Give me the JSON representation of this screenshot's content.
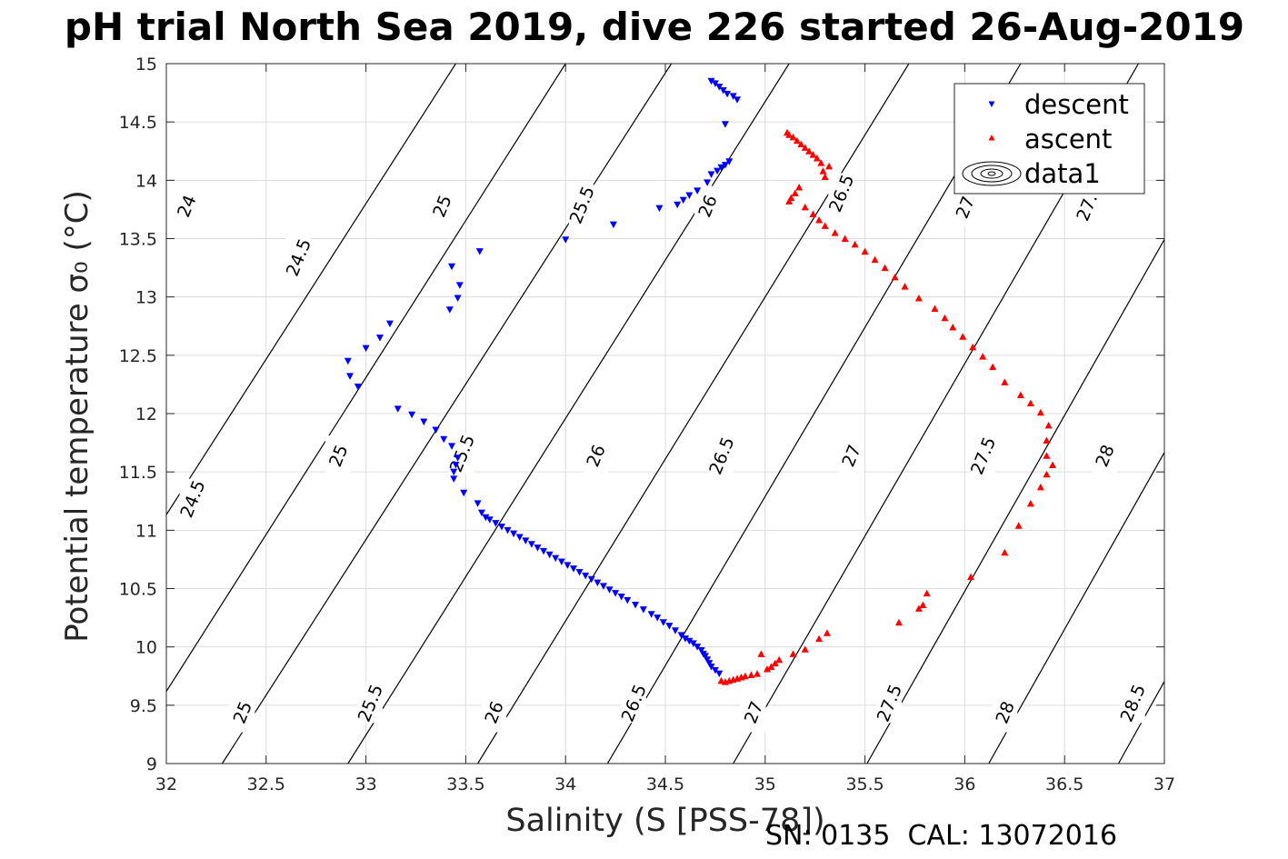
{
  "chart_data": {
    "type": "scatter",
    "title": "pH trial North Sea 2019, dive 226 started 26-Aug-2019",
    "xlabel": "Salinity (S [PSS-78])",
    "ylabel": "Potential temperature σ₀ (°C)",
    "footnote": "SN: 0135  CAL: 13072016",
    "xlim": [
      32,
      37
    ],
    "ylim": [
      9,
      15
    ],
    "x_ticks": [
      "32",
      "32.5",
      "33",
      "33.5",
      "34",
      "34.5",
      "35",
      "35.5",
      "36",
      "36.5",
      "37"
    ],
    "y_ticks": [
      "9",
      "9.5",
      "10",
      "10.5",
      "11",
      "11.5",
      "12",
      "12.5",
      "13",
      "13.5",
      "14",
      "14.5",
      "15"
    ],
    "grid": true,
    "legend": {
      "position": "top-right",
      "entries": [
        "descent",
        "ascent",
        "data1"
      ]
    },
    "series": [
      {
        "name": "descent",
        "marker": "triangle-down",
        "color": "#0000ff",
        "x": [
          34.73,
          34.75,
          34.77,
          34.79,
          34.81,
          34.84,
          34.86,
          34.8,
          34.82,
          34.8,
          34.78,
          34.76,
          34.73,
          34.71,
          34.66,
          34.62,
          34.59,
          34.56,
          34.47,
          34.24,
          34.0,
          33.57,
          33.43,
          33.47,
          33.46,
          33.42,
          33.12,
          33.07,
          33.0,
          32.91,
          32.92,
          32.96,
          33.16,
          33.23,
          33.29,
          33.35,
          33.39,
          33.43,
          33.46,
          33.45,
          33.44,
          33.44,
          33.49,
          33.56,
          33.58,
          33.6,
          33.62,
          33.65,
          33.68,
          33.71,
          33.74,
          33.77,
          33.8,
          33.83,
          33.86,
          33.89,
          33.92,
          33.95,
          33.98,
          34.01,
          34.04,
          34.07,
          34.1,
          34.13,
          34.16,
          34.19,
          34.22,
          34.25,
          34.28,
          34.31,
          34.35,
          34.39,
          34.43,
          34.46,
          34.49,
          34.52,
          34.55,
          34.58,
          34.6,
          34.62,
          34.64,
          34.66,
          34.68,
          34.69,
          34.7,
          34.71,
          34.72,
          34.73,
          34.75,
          34.77
        ],
        "y": [
          14.85,
          14.83,
          14.8,
          14.77,
          14.74,
          14.72,
          14.69,
          14.48,
          14.16,
          14.13,
          14.11,
          14.08,
          14.05,
          13.98,
          13.91,
          13.87,
          13.83,
          13.79,
          13.76,
          13.62,
          13.49,
          13.39,
          13.26,
          13.1,
          12.99,
          12.89,
          12.77,
          12.65,
          12.56,
          12.45,
          12.32,
          12.23,
          12.04,
          11.99,
          11.93,
          11.86,
          11.78,
          11.72,
          11.62,
          11.56,
          11.5,
          11.44,
          11.32,
          11.23,
          11.15,
          11.11,
          11.09,
          11.06,
          11.03,
          11.0,
          10.97,
          10.94,
          10.91,
          10.88,
          10.85,
          10.82,
          10.79,
          10.76,
          10.73,
          10.7,
          10.67,
          10.64,
          10.61,
          10.58,
          10.55,
          10.52,
          10.49,
          10.46,
          10.43,
          10.4,
          10.36,
          10.32,
          10.28,
          10.25,
          10.21,
          10.18,
          10.14,
          10.1,
          10.07,
          10.05,
          10.03,
          10.0,
          9.97,
          9.94,
          9.92,
          9.89,
          9.86,
          9.83,
          9.8,
          9.77
        ]
      },
      {
        "name": "ascent",
        "marker": "triangle-up",
        "color": "#ff0000",
        "x": [
          34.78,
          34.8,
          34.82,
          34.84,
          34.86,
          34.88,
          34.9,
          34.93,
          34.96,
          34.98,
          35.01,
          35.03,
          35.05,
          35.07,
          35.11,
          35.12,
          35.14,
          35.16,
          35.18,
          35.2,
          35.22,
          35.24,
          35.26,
          35.28,
          35.29,
          35.3,
          35.32,
          35.12,
          35.13,
          35.15,
          35.17,
          35.2,
          35.24,
          35.27,
          35.3,
          35.35,
          35.4,
          35.45,
          35.5,
          35.55,
          35.6,
          35.65,
          35.7,
          35.77,
          35.85,
          35.9,
          35.94,
          35.99,
          36.04,
          36.09,
          36.14,
          36.2,
          36.28,
          36.33,
          36.38,
          36.42,
          36.41,
          36.41,
          36.44,
          36.41,
          36.38,
          36.33,
          36.27,
          36.2,
          36.03,
          35.81,
          35.79,
          35.77,
          35.67,
          35.31,
          35.27,
          35.2,
          35.14
        ],
        "y": [
          9.71,
          9.7,
          9.71,
          9.72,
          9.73,
          9.74,
          9.75,
          9.76,
          9.77,
          9.94,
          9.81,
          9.83,
          9.86,
          9.89,
          14.41,
          14.39,
          14.37,
          14.34,
          14.31,
          14.28,
          14.25,
          14.22,
          14.19,
          14.15,
          14.08,
          14.03,
          14.12,
          13.82,
          13.85,
          13.89,
          13.94,
          13.77,
          13.71,
          13.66,
          13.61,
          13.55,
          13.5,
          13.45,
          13.39,
          13.32,
          13.25,
          13.17,
          13.09,
          12.99,
          12.9,
          12.82,
          12.74,
          12.66,
          12.57,
          12.49,
          12.4,
          12.27,
          12.16,
          12.09,
          12.01,
          11.9,
          11.77,
          11.64,
          11.56,
          11.48,
          11.37,
          11.23,
          11.04,
          10.81,
          10.6,
          10.46,
          10.36,
          10.33,
          10.21,
          10.12,
          10.07,
          9.98,
          9.94
        ]
      }
    ],
    "isopycnals": [
      {
        "label": "24",
        "x_at_ymin": 31.2,
        "x_at_ymax": 33.45
      },
      {
        "label": "24.5",
        "x_at_ymin": 31.77,
        "x_at_ymax": 34.0
      },
      {
        "label": "25",
        "x_at_ymin": 32.28,
        "x_at_ymax": 34.53
      },
      {
        "label": "25.5",
        "x_at_ymin": 32.91,
        "x_at_ymax": 35.12
      },
      {
        "label": "26",
        "x_at_ymin": 33.56,
        "x_at_ymax": 35.72
      },
      {
        "label": "26.5",
        "x_at_ymin": 34.21,
        "x_at_ymax": 36.28
      },
      {
        "label": "27",
        "x_at_ymin": 34.84,
        "x_at_ymax": 36.87
      },
      {
        "label": "27.5",
        "x_at_ymin": 35.51,
        "x_at_ymax": 37.5
      },
      {
        "label": "28",
        "x_at_ymin": 36.12,
        "x_at_ymax": 38.1
      },
      {
        "label": "28.5",
        "x_at_ymin": 36.77,
        "x_at_ymax": 38.73
      }
    ],
    "contour_labels": [
      {
        "text": "24",
        "x": 32.1,
        "y": 13.78
      },
      {
        "text": "24.5",
        "x": 32.66,
        "y": 13.34
      },
      {
        "text": "25",
        "x": 33.38,
        "y": 13.78
      },
      {
        "text": "25.5",
        "x": 34.08,
        "y": 13.79
      },
      {
        "text": "26",
        "x": 34.71,
        "y": 13.78
      },
      {
        "text": "26.5",
        "x": 35.38,
        "y": 13.89
      },
      {
        "text": "27",
        "x": 36.0,
        "y": 13.77
      },
      {
        "text": "27.",
        "x": 36.61,
        "y": 13.77
      },
      {
        "text": "24.5",
        "x": 32.13,
        "y": 11.27
      },
      {
        "text": "25",
        "x": 32.86,
        "y": 11.64
      },
      {
        "text": "25.5",
        "x": 33.48,
        "y": 11.66
      },
      {
        "text": "26",
        "x": 34.15,
        "y": 11.64
      },
      {
        "text": "26.5",
        "x": 34.78,
        "y": 11.64
      },
      {
        "text": "27",
        "x": 35.43,
        "y": 11.64
      },
      {
        "text": "27.5",
        "x": 36.09,
        "y": 11.64
      },
      {
        "text": "28",
        "x": 36.7,
        "y": 11.64
      },
      {
        "text": "25",
        "x": 32.38,
        "y": 9.44
      },
      {
        "text": "25.5",
        "x": 33.02,
        "y": 9.52
      },
      {
        "text": "26",
        "x": 33.64,
        "y": 9.44
      },
      {
        "text": "26.5",
        "x": 34.34,
        "y": 9.52
      },
      {
        "text": "27",
        "x": 34.94,
        "y": 9.44
      },
      {
        "text": "27.5",
        "x": 35.62,
        "y": 9.52
      },
      {
        "text": "28",
        "x": 36.2,
        "y": 9.44
      },
      {
        "text": "28.5",
        "x": 36.84,
        "y": 9.52
      }
    ]
  }
}
